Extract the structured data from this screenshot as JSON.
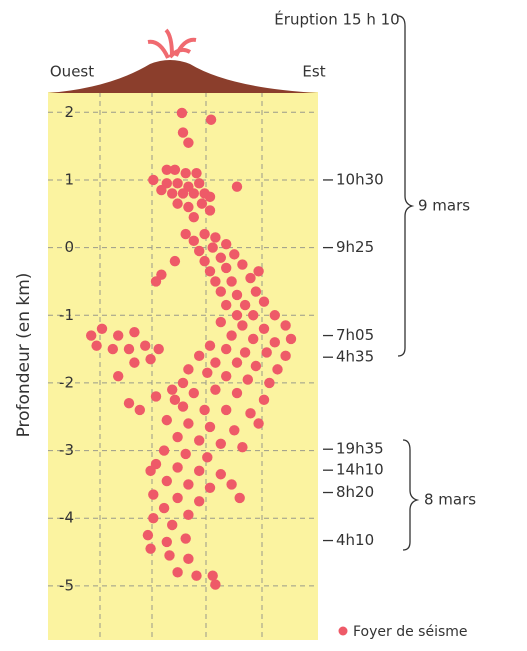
{
  "chart_data": {
    "type": "scatter",
    "eruption_label": "Éruption 15 h 10",
    "west_label": "Ouest",
    "east_label": "Est",
    "ylabel": "Profondeur (en km)",
    "ylim": [
      -5.8,
      2.3
    ],
    "yticks": [
      2,
      1,
      0,
      -1,
      -2,
      -3,
      -4,
      -5
    ],
    "xlim": [
      0,
      5
    ],
    "grid": true,
    "annotations": [
      {
        "label": "10h30",
        "y": 1.0
      },
      {
        "label": "9h25",
        "y": 0
      },
      {
        "label": "7h05",
        "y": -1.3
      },
      {
        "label": "4h35",
        "y": -1.62
      },
      {
        "label": "19h35",
        "y": -2.98
      },
      {
        "label": "14h10",
        "y": -3.29
      },
      {
        "label": "8h20",
        "y": -3.62
      },
      {
        "label": "4h10",
        "y": -4.33
      }
    ],
    "date_groups": [
      "9 mars",
      "8 mars"
    ],
    "series": [
      {
        "name": "Foyer de séisme",
        "color": "#ee5a68",
        "x": [
          2.48,
          3.02,
          2.5,
          2.6,
          1.95,
          2.2,
          2.35,
          2.55,
          2.75,
          2.2,
          2.4,
          2.6,
          2.8,
          2.3,
          2.5,
          2.7,
          2.9,
          3.5,
          2.4,
          2.6,
          2.85,
          3.0,
          2.1,
          2.7,
          3.0,
          2.55,
          2.7,
          2.9,
          3.1,
          2.8,
          3.05,
          3.3,
          2.9,
          3.2,
          3.45,
          3.0,
          3.3,
          3.6,
          3.1,
          3.4,
          3.75,
          3.2,
          3.5,
          3.85,
          3.3,
          3.65,
          4.0,
          2.1,
          2.35,
          3.9,
          3.5,
          3.8,
          4.2,
          3.2,
          3.6,
          4.0,
          4.4,
          3.4,
          3.8,
          4.2,
          4.5,
          3.0,
          3.3,
          3.65,
          4.05,
          4.4,
          2.8,
          3.1,
          3.5,
          3.85,
          4.25,
          2.6,
          2.95,
          3.3,
          3.7,
          4.1,
          2.5,
          1.0,
          1.3,
          1.6,
          0.9,
          1.2,
          1.5,
          1.8,
          2.05,
          1.6,
          1.9,
          1.3,
          2.0,
          0.8,
          1.5,
          1.7,
          2.0,
          2.3,
          2.7,
          3.1,
          3.5,
          4.0,
          2.5,
          2.9,
          3.3,
          3.75,
          2.2,
          2.6,
          3.0,
          3.45,
          2.4,
          2.8,
          3.2,
          3.6,
          2.15,
          2.55,
          2.95,
          2.35,
          3.9,
          2.0,
          2.4,
          2.8,
          3.2,
          2.2,
          2.6,
          3.0,
          3.4,
          1.95,
          2.4,
          2.8,
          2.15,
          2.6,
          1.9,
          3.55,
          1.95,
          2.3,
          1.85,
          2.2,
          2.55,
          1.9,
          2.25,
          2.6,
          2.4,
          2.75,
          3.05,
          3.1
        ],
        "values": [
          1.99,
          1.89,
          1.7,
          1.55,
          1.0,
          1.15,
          1.15,
          1.1,
          1.1,
          0.95,
          0.95,
          0.9,
          0.95,
          0.8,
          0.8,
          0.8,
          0.8,
          0.9,
          0.65,
          0.6,
          0.65,
          0.75,
          0.85,
          0.45,
          0.55,
          0.2,
          0.1,
          0.2,
          0.15,
          -0.05,
          0.0,
          0.05,
          -0.2,
          -0.15,
          -0.1,
          -0.35,
          -0.3,
          -0.25,
          -0.5,
          -0.5,
          -0.45,
          -0.65,
          -0.7,
          -0.65,
          -0.85,
          -0.85,
          -0.8,
          -0.4,
          -0.2,
          -0.35,
          -1.0,
          -1.0,
          -1.0,
          -1.1,
          -1.15,
          -1.2,
          -1.15,
          -1.3,
          -1.35,
          -1.4,
          -1.35,
          -1.45,
          -1.5,
          -1.55,
          -1.55,
          -1.6,
          -1.6,
          -1.7,
          -1.7,
          -1.75,
          -1.8,
          -1.8,
          -1.85,
          -1.9,
          -1.95,
          -2.0,
          -2.0,
          -1.2,
          -1.3,
          -1.25,
          -1.45,
          -1.5,
          -1.5,
          -1.45,
          -1.5,
          -1.7,
          -1.65,
          -1.9,
          -0.5,
          -1.3,
          -2.3,
          -2.4,
          -2.2,
          -2.1,
          -2.15,
          -2.1,
          -2.15,
          -2.25,
          -2.35,
          -2.4,
          -2.4,
          -2.45,
          -2.55,
          -2.6,
          -2.65,
          -2.7,
          -2.8,
          -2.85,
          -2.9,
          -2.95,
          -3.0,
          -3.05,
          -3.1,
          -2.25,
          -2.6,
          -3.2,
          -3.25,
          -3.3,
          -3.35,
          -3.45,
          -3.5,
          -3.55,
          -3.5,
          -3.65,
          -3.7,
          -3.75,
          -3.85,
          -3.95,
          -3.3,
          -3.7,
          -4.0,
          -4.1,
          -4.25,
          -4.35,
          -4.3,
          -4.45,
          -4.55,
          -4.6,
          -4.8,
          -4.85,
          -4.85,
          -4.98
        ]
      }
    ]
  }
}
